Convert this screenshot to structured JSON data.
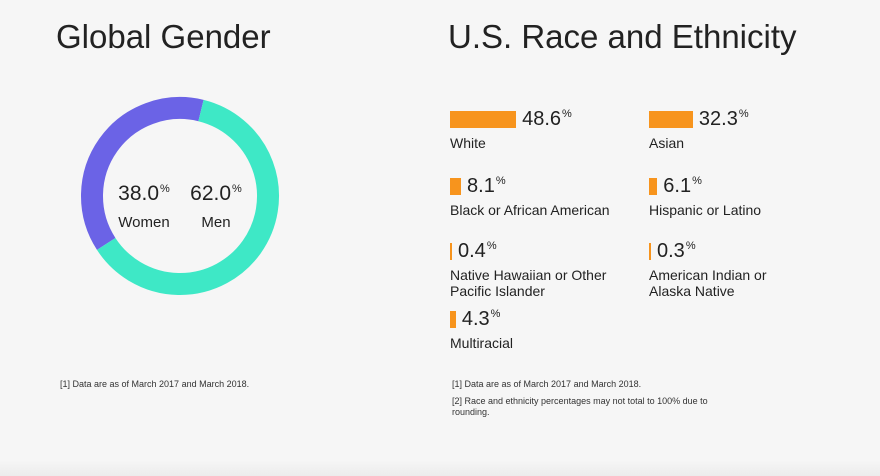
{
  "gender": {
    "title": "Global Gender",
    "footnote": "[1] Data are as of March 2017 and March 2018."
  },
  "race": {
    "title": "U.S. Race and Ethnicity",
    "footnotes": [
      "[1] Data are as of March 2017 and March 2018.",
      "[2] Race and ethnicity percentages may not total to 100% due to rounding."
    ]
  },
  "percent_symbol": "%",
  "chart_data": [
    {
      "type": "pie",
      "title": "Global Gender",
      "labels": [
        "Women",
        "Men"
      ],
      "values": [
        38.0,
        62.0
      ],
      "display": [
        "38.0",
        "62.0"
      ],
      "colors": [
        "#6b63e6",
        "#3ee8c6"
      ],
      "donut": true
    },
    {
      "type": "bar",
      "title": "U.S. Race and Ethnicity",
      "categories": [
        "White",
        "Asian",
        "Black or African American",
        "Hispanic or Latino",
        "Native Hawaiian or Other Pacific Islander",
        "American Indian or Alaska Native",
        "Multiracial"
      ],
      "values": [
        48.6,
        32.3,
        8.1,
        6.1,
        0.4,
        0.3,
        4.3
      ],
      "display": [
        "48.6",
        "32.3",
        "8.1",
        "6.1",
        "0.4",
        "0.3",
        "4.3"
      ],
      "color": "#f7941d"
    }
  ]
}
